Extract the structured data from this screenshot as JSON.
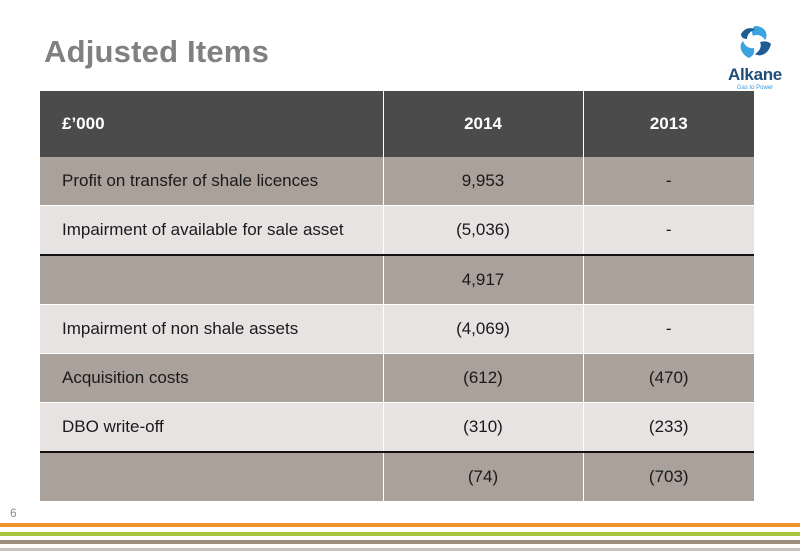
{
  "slide": {
    "title": "Adjusted Items",
    "page_number": "6"
  },
  "logo": {
    "name": "Alkane",
    "tagline": "Gas to Power",
    "icon": "alkane-swirl-logo-icon",
    "colors": [
      "#1f5c93",
      "#3aa3e0"
    ]
  },
  "table": {
    "headers": [
      "£’000",
      "2014",
      "2013"
    ],
    "rows": [
      {
        "label": "Profit on transfer of shale licences",
        "y2014": "9,953",
        "y2013": "-"
      },
      {
        "label": "Impairment of available for sale asset",
        "y2014": "(5,036)",
        "y2013": "-"
      },
      {
        "label": "",
        "y2014": "4,917",
        "y2013": ""
      },
      {
        "label": "Impairment of non shale assets",
        "y2014": "(4,069)",
        "y2013": "-"
      },
      {
        "label": "Acquisition costs",
        "y2014": "(612)",
        "y2013": "(470)"
      },
      {
        "label": "DBO write-off",
        "y2014": "(310)",
        "y2013": "(233)"
      },
      {
        "label": "",
        "y2014": "(74)",
        "y2013": "(703)"
      }
    ]
  },
  "colors": {
    "header_bg": "#4b4b4b",
    "row_dark": "#a9a19a",
    "row_light": "#e6e3e2",
    "title": "#808080",
    "stripes": [
      "#f0922b",
      "#a4c53d",
      "#9e8c7d",
      "#c7c2bd"
    ]
  }
}
